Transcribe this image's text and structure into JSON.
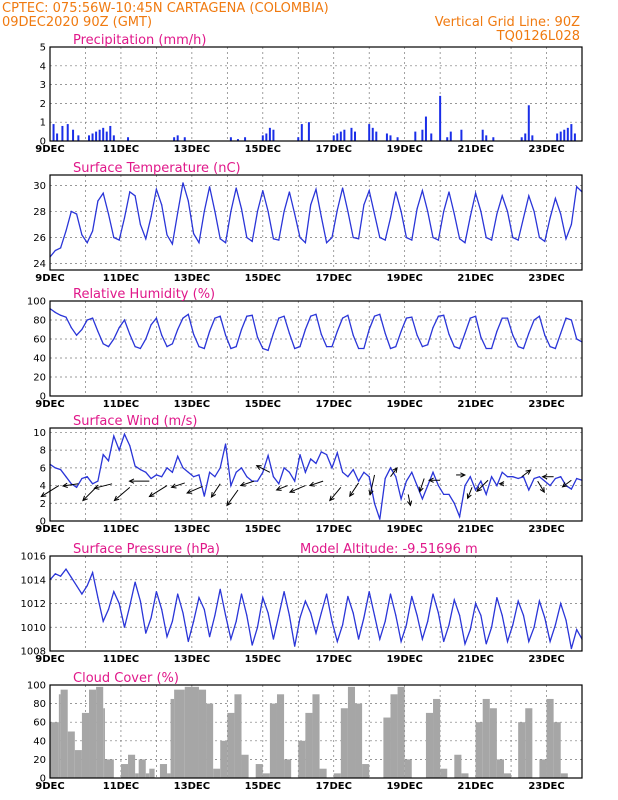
{
  "header": {
    "left_line1": "CPTEC:   075:56W-10:45N   CARTAGENA (COLOMBIA)",
    "left_line2": "09DEC2020 90Z (GMT)",
    "right_line1": "Vertical Grid Line: 90Z",
    "right_line2": "TQ0126L028"
  },
  "colors": {
    "header": "#f07a10",
    "panel_title": "#e0188a",
    "series": "#2a35d8",
    "bars": "#1a2ee8",
    "cloud": "#a6a6a6"
  },
  "x_axis_labels": [
    "9DEC",
    "11DEC",
    "13DEC",
    "15DEC",
    "17DEC",
    "19DEC",
    "21DEC",
    "23DEC"
  ],
  "chart_data": [
    {
      "id": "precip",
      "type": "bar",
      "title": "Precipitation (mm/h)",
      "ylim": [
        0,
        5
      ],
      "yticks": [
        0,
        1,
        2,
        3,
        4,
        5
      ],
      "x_range_days": [
        0,
        15
      ],
      "x": [
        0.1,
        0.2,
        0.35,
        0.5,
        0.65,
        0.8,
        1.1,
        1.2,
        1.3,
        1.4,
        1.5,
        1.6,
        1.7,
        1.8,
        2.2,
        3.5,
        3.6,
        3.8,
        5.1,
        5.3,
        5.5,
        6.0,
        6.1,
        6.2,
        6.3,
        7.0,
        7.1,
        7.3,
        8.0,
        8.1,
        8.2,
        8.3,
        8.5,
        8.6,
        9.0,
        9.1,
        9.2,
        9.5,
        9.6,
        9.8,
        10.3,
        10.5,
        10.6,
        10.75,
        11.0,
        11.2,
        11.3,
        11.6,
        12.2,
        12.3,
        12.5,
        13.3,
        13.4,
        13.5,
        13.6,
        14.3,
        14.4,
        14.5,
        14.6,
        14.7,
        14.8
      ],
      "values": [
        0.9,
        0.4,
        0.8,
        0.9,
        0.6,
        0.3,
        0.3,
        0.4,
        0.5,
        0.6,
        0.7,
        0.5,
        0.8,
        0.3,
        0.2,
        0.2,
        0.3,
        0.2,
        0.2,
        0.1,
        0.2,
        0.3,
        0.4,
        0.7,
        0.6,
        0.2,
        0.9,
        1.0,
        0.3,
        0.4,
        0.5,
        0.6,
        0.7,
        0.5,
        0.9,
        0.7,
        0.5,
        0.4,
        0.3,
        0.2,
        0.5,
        0.6,
        1.3,
        0.4,
        2.4,
        0.2,
        0.5,
        0.6,
        0.6,
        0.3,
        0.2,
        0.2,
        0.4,
        1.9,
        0.3,
        0.4,
        0.5,
        0.6,
        0.7,
        0.9,
        0.4
      ]
    },
    {
      "id": "temperature",
      "type": "line",
      "title": "Surface Temperature (nC)",
      "ylim": [
        23.5,
        30.8
      ],
      "yticks": [
        24,
        26,
        28,
        30
      ],
      "x_range_days": [
        0,
        15
      ],
      "x": [
        0,
        0.15,
        0.3,
        0.45,
        0.6,
        0.75,
        0.9,
        1.05,
        1.2,
        1.35,
        1.5,
        1.65,
        1.8,
        1.95,
        2.1,
        2.25,
        2.4,
        2.55,
        2.7,
        2.85,
        3.0,
        3.15,
        3.3,
        3.45,
        3.6,
        3.75,
        3.9,
        4.05,
        4.2,
        4.35,
        4.5,
        4.65,
        4.8,
        4.95,
        5.1,
        5.25,
        5.4,
        5.55,
        5.7,
        5.85,
        6.0,
        6.15,
        6.3,
        6.45,
        6.6,
        6.75,
        6.9,
        7.05,
        7.2,
        7.35,
        7.5,
        7.65,
        7.8,
        7.95,
        8.1,
        8.25,
        8.4,
        8.55,
        8.7,
        8.85,
        9.0,
        9.15,
        9.3,
        9.45,
        9.6,
        9.75,
        9.9,
        10.05,
        10.2,
        10.35,
        10.5,
        10.65,
        10.8,
        10.95,
        11.1,
        11.25,
        11.4,
        11.55,
        11.7,
        11.85,
        12.0,
        12.15,
        12.3,
        12.45,
        12.6,
        12.75,
        12.9,
        13.05,
        13.2,
        13.35,
        13.5,
        13.65,
        13.8,
        13.95,
        14.1,
        14.25,
        14.4,
        14.55,
        14.7,
        14.85,
        15.0
      ],
      "values": [
        24.5,
        25.0,
        25.2,
        26.5,
        28.0,
        27.8,
        26.2,
        25.6,
        26.5,
        28.8,
        29.4,
        27.8,
        26.0,
        25.8,
        27.5,
        29.5,
        29.2,
        27.0,
        25.9,
        27.6,
        29.7,
        28.5,
        26.2,
        25.5,
        27.9,
        30.2,
        28.8,
        26.3,
        25.6,
        28.0,
        29.9,
        28.0,
        25.9,
        25.6,
        28.0,
        29.8,
        28.2,
        26.0,
        25.7,
        28.0,
        29.6,
        28.0,
        25.9,
        25.8,
        28.0,
        29.5,
        27.8,
        26.0,
        25.6,
        28.5,
        29.7,
        27.6,
        25.6,
        26.0,
        28.1,
        29.8,
        28.0,
        26.0,
        25.9,
        28.5,
        29.6,
        27.8,
        26.0,
        25.8,
        27.5,
        29.5,
        28.0,
        26.0,
        25.8,
        28.2,
        29.6,
        28.0,
        26.0,
        25.8,
        28.0,
        29.5,
        27.8,
        25.9,
        25.6,
        27.6,
        29.4,
        28.0,
        26.0,
        25.8,
        27.8,
        29.2,
        28.0,
        26.0,
        25.8,
        27.5,
        29.2,
        28.0,
        26.0,
        25.7,
        27.5,
        29.0,
        27.8,
        25.9,
        27.0,
        29.9,
        29.5
      ]
    },
    {
      "id": "humidity",
      "type": "line",
      "title": "Relative Humidity (%)",
      "ylim": [
        0,
        100
      ],
      "yticks": [
        0,
        20,
        40,
        60,
        80,
        100
      ],
      "x_range_days": [
        0,
        15
      ],
      "x": [
        0,
        0.15,
        0.3,
        0.45,
        0.6,
        0.75,
        0.9,
        1.05,
        1.2,
        1.35,
        1.5,
        1.65,
        1.8,
        1.95,
        2.1,
        2.25,
        2.4,
        2.55,
        2.7,
        2.85,
        3.0,
        3.15,
        3.3,
        3.45,
        3.6,
        3.75,
        3.9,
        4.05,
        4.2,
        4.35,
        4.5,
        4.65,
        4.8,
        4.95,
        5.1,
        5.25,
        5.4,
        5.55,
        5.7,
        5.85,
        6.0,
        6.15,
        6.3,
        6.45,
        6.6,
        6.75,
        6.9,
        7.05,
        7.2,
        7.35,
        7.5,
        7.65,
        7.8,
        7.95,
        8.1,
        8.25,
        8.4,
        8.55,
        8.7,
        8.85,
        9.0,
        9.15,
        9.3,
        9.45,
        9.6,
        9.75,
        9.9,
        10.05,
        10.2,
        10.35,
        10.5,
        10.65,
        10.8,
        10.95,
        11.1,
        11.25,
        11.4,
        11.55,
        11.7,
        11.85,
        12.0,
        12.15,
        12.3,
        12.45,
        12.6,
        12.75,
        12.9,
        13.05,
        13.2,
        13.35,
        13.5,
        13.65,
        13.8,
        13.95,
        14.1,
        14.25,
        14.4,
        14.55,
        14.7,
        14.85,
        15.0
      ],
      "values": [
        92,
        88,
        85,
        83,
        72,
        64,
        70,
        80,
        82,
        68,
        55,
        52,
        60,
        72,
        80,
        65,
        52,
        50,
        60,
        75,
        82,
        64,
        52,
        55,
        70,
        82,
        86,
        65,
        52,
        50,
        68,
        82,
        84,
        64,
        50,
        52,
        70,
        84,
        85,
        62,
        50,
        48,
        66,
        82,
        84,
        66,
        50,
        52,
        70,
        84,
        86,
        65,
        52,
        52,
        68,
        82,
        85,
        64,
        50,
        50,
        70,
        84,
        86,
        66,
        50,
        52,
        68,
        82,
        83,
        64,
        52,
        54,
        72,
        84,
        85,
        65,
        52,
        50,
        66,
        82,
        84,
        62,
        50,
        50,
        68,
        82,
        82,
        64,
        52,
        50,
        66,
        80,
        84,
        64,
        52,
        50,
        66,
        82,
        80,
        60,
        57
      ]
    },
    {
      "id": "wind",
      "type": "line",
      "title": "Surface Wind (m/s)",
      "ylim": [
        0,
        10.5
      ],
      "yticks": [
        0,
        2,
        4,
        6,
        8,
        10
      ],
      "x_range_days": [
        0,
        15
      ],
      "x": [
        0,
        0.15,
        0.3,
        0.45,
        0.6,
        0.75,
        0.9,
        1.05,
        1.2,
        1.35,
        1.5,
        1.65,
        1.8,
        1.95,
        2.1,
        2.25,
        2.4,
        2.55,
        2.7,
        2.85,
        3.0,
        3.15,
        3.3,
        3.45,
        3.6,
        3.75,
        3.9,
        4.05,
        4.2,
        4.35,
        4.5,
        4.65,
        4.8,
        4.95,
        5.1,
        5.25,
        5.4,
        5.55,
        5.7,
        5.85,
        6.0,
        6.15,
        6.3,
        6.45,
        6.6,
        6.75,
        6.9,
        7.05,
        7.2,
        7.35,
        7.5,
        7.65,
        7.8,
        7.95,
        8.1,
        8.25,
        8.4,
        8.55,
        8.7,
        8.85,
        9.0,
        9.15,
        9.3,
        9.45,
        9.6,
        9.75,
        9.9,
        10.05,
        10.2,
        10.35,
        10.5,
        10.65,
        10.8,
        10.95,
        11.1,
        11.25,
        11.4,
        11.55,
        11.7,
        11.85,
        12.0,
        12.15,
        12.3,
        12.45,
        12.6,
        12.75,
        12.9,
        13.05,
        13.2,
        13.35,
        13.5,
        13.65,
        13.8,
        13.95,
        14.1,
        14.25,
        14.4,
        14.55,
        14.7,
        14.85,
        15.0
      ],
      "values": [
        6.4,
        6.0,
        5.8,
        5.0,
        4.2,
        3.8,
        4.8,
        5.0,
        4.2,
        4.5,
        7.5,
        6.8,
        9.6,
        8.0,
        9.8,
        8.5,
        6.2,
        5.8,
        5.5,
        4.8,
        5.2,
        5.0,
        6.0,
        5.5,
        7.3,
        6.0,
        5.5,
        5.0,
        5.2,
        2.8,
        5.5,
        5.0,
        6.0,
        8.7,
        4.0,
        5.5,
        6.0,
        5.0,
        4.5,
        4.5,
        5.5,
        7.4,
        5.0,
        4.2,
        6.0,
        5.5,
        4.5,
        7.5,
        5.5,
        7.0,
        6.5,
        7.8,
        7.5,
        6.0,
        7.7,
        5.5,
        5.0,
        5.8,
        4.5,
        5.5,
        5.0,
        2.0,
        0.2,
        4.8,
        6.0,
        5.0,
        2.5,
        4.5,
        5.5,
        4.0,
        2.5,
        4.0,
        5.5,
        4.0,
        3.0,
        3.0,
        2.0,
        0.5,
        4.0,
        5.0,
        3.5,
        4.5,
        3.0,
        5.0,
        4.0,
        5.5,
        5.0,
        5.0,
        4.8,
        5.0,
        3.5,
        4.8,
        5.0,
        4.5,
        4.0,
        4.8,
        5.0,
        4.0,
        3.6,
        4.8,
        4.6
      ]
    },
    {
      "id": "pressure",
      "type": "line",
      "title": "Surface Pressure (hPa)",
      "annotation": "Model Altitude: -9.51696 m",
      "ylim": [
        1008,
        1016
      ],
      "yticks": [
        1008,
        1010,
        1012,
        1014,
        1016
      ],
      "x_range_days": [
        0,
        15
      ],
      "x": [
        0,
        0.15,
        0.3,
        0.45,
        0.6,
        0.75,
        0.9,
        1.05,
        1.2,
        1.35,
        1.5,
        1.65,
        1.8,
        1.95,
        2.1,
        2.25,
        2.4,
        2.55,
        2.7,
        2.85,
        3.0,
        3.15,
        3.3,
        3.45,
        3.6,
        3.75,
        3.9,
        4.05,
        4.2,
        4.35,
        4.5,
        4.65,
        4.8,
        4.95,
        5.1,
        5.25,
        5.4,
        5.55,
        5.7,
        5.85,
        6.0,
        6.15,
        6.3,
        6.45,
        6.6,
        6.75,
        6.9,
        7.05,
        7.2,
        7.35,
        7.5,
        7.65,
        7.8,
        7.95,
        8.1,
        8.25,
        8.4,
        8.55,
        8.7,
        8.85,
        9.0,
        9.15,
        9.3,
        9.45,
        9.6,
        9.75,
        9.9,
        10.05,
        10.2,
        10.35,
        10.5,
        10.65,
        10.8,
        10.95,
        11.1,
        11.25,
        11.4,
        11.55,
        11.7,
        11.85,
        12.0,
        12.15,
        12.3,
        12.45,
        12.6,
        12.75,
        12.9,
        13.05,
        13.2,
        13.35,
        13.5,
        13.65,
        13.8,
        13.95,
        14.1,
        14.25,
        14.4,
        14.55,
        14.7,
        14.85,
        15.0
      ],
      "values": [
        1014.0,
        1014.5,
        1014.3,
        1014.9,
        1014.2,
        1013.5,
        1012.8,
        1013.5,
        1014.6,
        1012.5,
        1010.5,
        1011.5,
        1013.0,
        1012.0,
        1010.0,
        1011.8,
        1013.8,
        1012.2,
        1009.5,
        1010.8,
        1013.0,
        1011.5,
        1009.2,
        1010.5,
        1012.8,
        1011.2,
        1008.8,
        1010.5,
        1012.5,
        1011.5,
        1009.2,
        1011.0,
        1013.2,
        1011.0,
        1009.0,
        1010.5,
        1012.8,
        1011.0,
        1008.5,
        1010.0,
        1012.5,
        1011.2,
        1009.0,
        1011.0,
        1013.0,
        1011.0,
        1008.4,
        1010.8,
        1012.2,
        1011.2,
        1009.5,
        1011.2,
        1012.8,
        1010.5,
        1008.8,
        1010.2,
        1012.6,
        1011.2,
        1009.0,
        1010.8,
        1013.0,
        1011.0,
        1009.0,
        1010.5,
        1012.8,
        1011.0,
        1008.8,
        1010.2,
        1012.6,
        1011.0,
        1009.0,
        1010.5,
        1012.8,
        1011.2,
        1008.8,
        1010.2,
        1012.3,
        1011.0,
        1008.6,
        1009.8,
        1012.0,
        1011.0,
        1008.6,
        1010.0,
        1012.5,
        1011.0,
        1008.8,
        1010.2,
        1012.2,
        1011.0,
        1008.8,
        1010.0,
        1012.2,
        1010.8,
        1008.8,
        1010.2,
        1012.0,
        1010.6,
        1008.2,
        1009.8,
        1009.0
      ]
    },
    {
      "id": "cloud",
      "type": "area",
      "title": "Cloud Cover (%)",
      "ylim": [
        0,
        100
      ],
      "yticks": [
        0,
        20,
        40,
        60,
        80,
        100
      ],
      "x_range_days": [
        0,
        15
      ],
      "x": [
        0,
        0.25,
        0.3,
        0.5,
        0.7,
        0.9,
        1.1,
        1.3,
        1.5,
        1.55,
        1.8,
        2.0,
        2.2,
        2.4,
        2.5,
        2.7,
        2.8,
        2.95,
        3.1,
        3.3,
        3.4,
        3.5,
        3.8,
        4.2,
        4.4,
        4.6,
        4.8,
        5.0,
        5.2,
        5.4,
        5.6,
        5.8,
        6.0,
        6.2,
        6.4,
        6.6,
        6.8,
        7.0,
        7.2,
        7.4,
        7.6,
        7.8,
        8.0,
        8.2,
        8.4,
        8.6,
        8.8,
        9.0,
        9.2,
        9.4,
        9.6,
        9.8,
        10.0,
        10.2,
        10.4,
        10.6,
        10.8,
        11.0,
        11.2,
        11.4,
        11.6,
        11.8,
        12.0,
        12.2,
        12.4,
        12.6,
        12.8,
        13.0,
        13.2,
        13.4,
        13.6,
        13.8,
        14.0,
        14.2,
        14.4,
        14.6,
        14.8,
        15.0
      ],
      "values": [
        60,
        90,
        95,
        50,
        30,
        70,
        95,
        98,
        75,
        20,
        0,
        15,
        25,
        5,
        20,
        5,
        10,
        0,
        15,
        5,
        85,
        95,
        98,
        95,
        80,
        10,
        40,
        70,
        90,
        25,
        0,
        15,
        5,
        80,
        90,
        20,
        0,
        40,
        70,
        90,
        10,
        0,
        5,
        75,
        98,
        80,
        15,
        0,
        0,
        65,
        90,
        98,
        20,
        0,
        0,
        70,
        85,
        10,
        0,
        25,
        5,
        0,
        60,
        85,
        75,
        20,
        5,
        0,
        60,
        75,
        0,
        20,
        85,
        60,
        5,
        0,
        0,
        0
      ]
    }
  ],
  "wind_vectors": {
    "x": [
      0.25,
      0.8,
      1.3,
      1.75,
      2.25,
      2.8,
      3.3,
      3.8,
      4.3,
      4.8,
      5.3,
      5.75,
      6.2,
      6.7,
      7.2,
      7.7,
      8.2,
      8.7,
      9.15,
      9.6,
      10.1,
      10.55,
      11.0,
      11.45,
      11.9,
      12.35,
      12.8,
      13.3,
      13.75,
      14.2,
      14.7
    ],
    "u": [
      -0.8,
      -0.7,
      -0.6,
      -0.8,
      -0.7,
      -0.9,
      -0.8,
      -0.6,
      -0.7,
      -0.4,
      -0.5,
      -0.6,
      -0.6,
      -0.5,
      -0.7,
      -0.6,
      -0.5,
      -0.4,
      -0.2,
      0.3,
      0.1,
      -0.2,
      -0.5,
      0.4,
      -0.2,
      -0.5,
      -0.2,
      0.4,
      0.3,
      -0.5,
      -0.4
    ],
    "v": [
      -0.5,
      -0.1,
      -0.6,
      -0.2,
      -0.6,
      0.0,
      -0.5,
      -0.2,
      -0.3,
      -0.6,
      -0.7,
      -0.2,
      0.3,
      -0.2,
      -0.3,
      -0.2,
      -0.6,
      -0.6,
      -0.9,
      0.4,
      -0.5,
      -0.6,
      0.0,
      0.0,
      -0.5,
      -0.5,
      0.0,
      0.3,
      -0.5,
      0.0,
      -0.3
    ],
    "level": [
      4.0,
      4.2,
      3.8,
      4.2,
      3.8,
      4.5,
      4.0,
      4.3,
      3.9,
      4.2,
      3.5,
      4.5,
      5.5,
      4.0,
      4.0,
      4.5,
      3.8,
      4.3,
      5.2,
      5.0,
      3.0,
      4.8,
      4.6,
      5.2,
      3.8,
      4.6,
      4.2,
      5.0,
      4.5,
      5.0,
      4.6
    ]
  }
}
